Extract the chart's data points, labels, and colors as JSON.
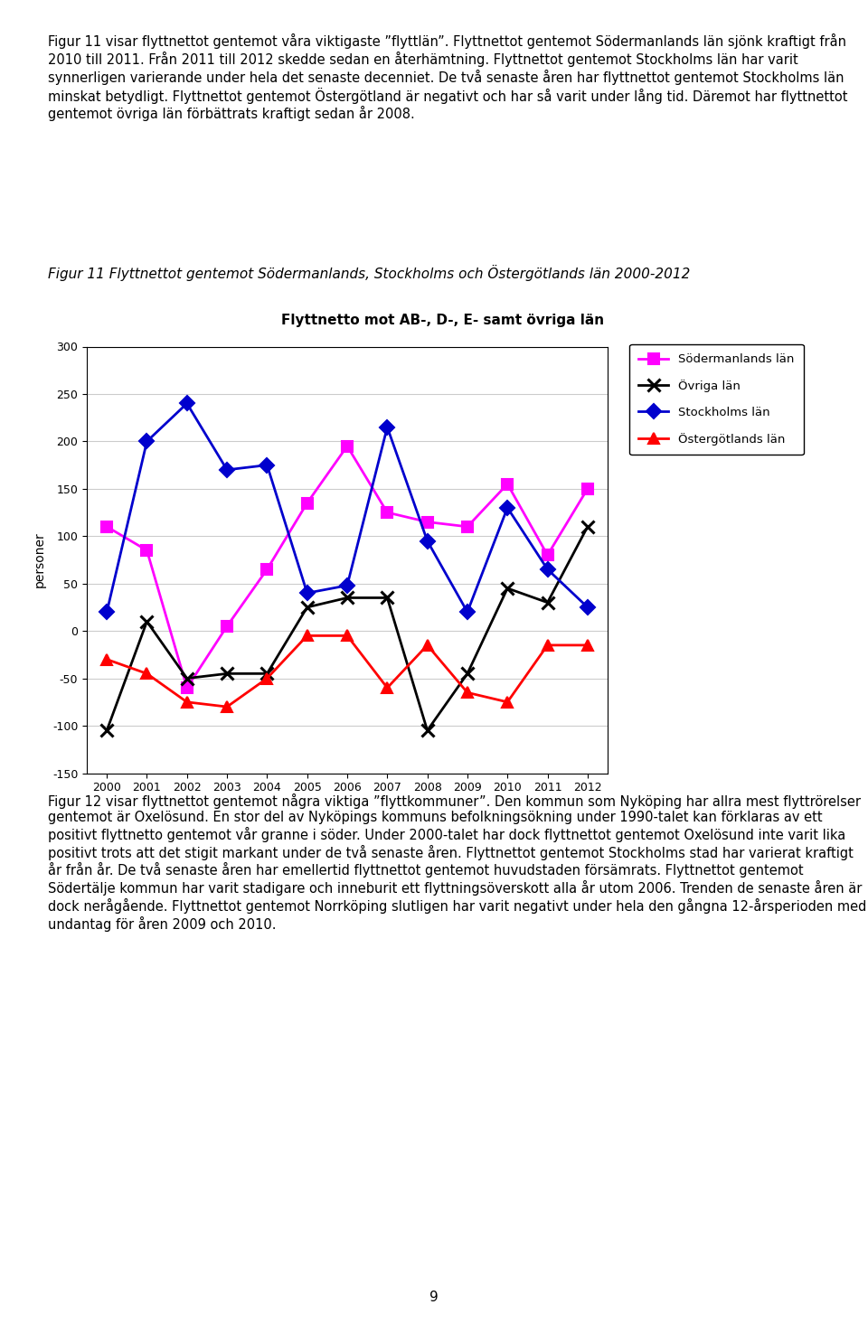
{
  "top_text": "Figur 11 visar flyttnettot gentemot våra viktigaste ”flyttlän”. Flyttnettot gentemot Södermanlands län sjönk kraftigt från 2010 till 2011. Från 2011 till 2012 skedde sedan en återhämtning. Flyttnettot gentemot Stockholms län har varit synnerligen varierande under hela det senaste decenniet. De två senaste åren har flyttnettot gentemot Stockholms län minskat betydligt. Flyttnettot gentemot Östergötland är negativt och har så varit under lång tid. Däremot har flyttnettot gentemot övriga län förbättrats kraftigt sedan år 2008.",
  "figure_label": "Figur 11 Flyttnettot gentemot Södermanlands, Stockholms och Östergötlands län 2000-2012",
  "chart_title": "Flyttnetto mot AB-, D-, E- samt övriga län",
  "ylabel": "personer",
  "years": [
    2000,
    2001,
    2002,
    2003,
    2004,
    2005,
    2006,
    2007,
    2008,
    2009,
    2010,
    2011,
    2012
  ],
  "sodermanlands": [
    110,
    85,
    -60,
    5,
    65,
    135,
    195,
    125,
    115,
    110,
    155,
    80,
    150
  ],
  "ovriga": [
    -105,
    10,
    -50,
    -45,
    -45,
    25,
    35,
    35,
    -105,
    -45,
    45,
    30,
    110
  ],
  "stockholms": [
    20,
    200,
    240,
    170,
    175,
    40,
    48,
    215,
    95,
    20,
    130,
    65,
    25
  ],
  "ostergotlands": [
    -30,
    -45,
    -75,
    -80,
    -50,
    -5,
    -5,
    -60,
    -15,
    -65,
    -75,
    -15,
    -15
  ],
  "series_colors": [
    "#FF00FF",
    "#000000",
    "#0000CD",
    "#FF0000"
  ],
  "series_labels": [
    "Södermanlands län",
    "Övriga län",
    "Stockholms län",
    "Östergötlands län"
  ],
  "markers": [
    "s",
    "x",
    "D",
    "^"
  ],
  "ylim": [
    -150,
    300
  ],
  "yticks": [
    -150,
    -100,
    -50,
    0,
    50,
    100,
    150,
    200,
    250,
    300
  ],
  "grid_color": "#cccccc",
  "bottom_text": "Figur 12 visar flyttnettot gentemot några viktiga ”flyttkommuner”. Den kommun som Nyköping har allra mest flyttrörelser gentemot är Oxelösund. En stor del av Nyköpings kommuns befolkningsökning under 1990-talet kan förklaras av ett positivt flyttnetto gentemot vår granne i söder. Under 2000-talet har dock flyttnettot gentemot Oxelösund inte varit lika positivt trots att det stigit markant under de två senaste åren. Flyttnettot gentemot Stockholms stad har varierat kraftigt år från år. De två senaste åren har emellertid flyttnettot gentemot huvudstaden försämrats. Flyttnettot gentemot Södertälje kommun har varit stadigare och inneburit ett flyttningsöverskott alla år utom 2006. Trenden de senaste åren är dock nerågående. Flyttnettot gentemot Norrköping slutligen har varit negativt under hela den gångna 12-årsperioden med undantag för åren 2009 och 2010.",
  "page_number": "9"
}
